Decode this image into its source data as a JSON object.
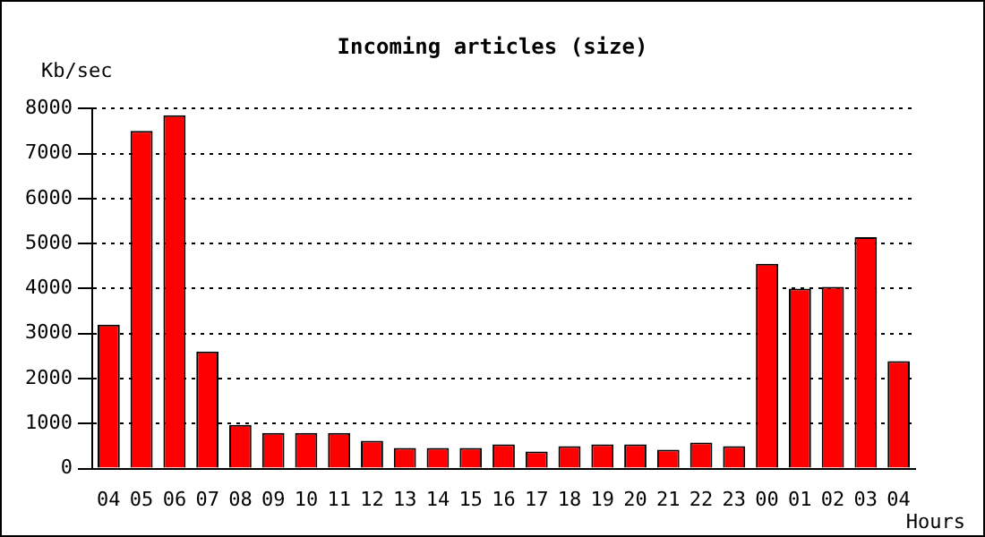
{
  "chart_data": {
    "type": "bar",
    "title": "Incoming articles (size)",
    "ylabel": "Kb/sec",
    "xlabel": "Hours",
    "categories": [
      "04",
      "05",
      "06",
      "07",
      "08",
      "09",
      "10",
      "11",
      "12",
      "13",
      "14",
      "15",
      "16",
      "17",
      "18",
      "19",
      "20",
      "21",
      "22",
      "23",
      "00",
      "01",
      "02",
      "03",
      "04"
    ],
    "values": [
      3200,
      7500,
      7850,
      2600,
      970,
      790,
      790,
      790,
      620,
      460,
      460,
      460,
      540,
      380,
      500,
      540,
      540,
      420,
      580,
      500,
      4550,
      4000,
      4040,
      5140,
      2390
    ],
    "color": "#ff0000",
    "ylim": [
      0,
      8000
    ],
    "yticks": [
      0,
      1000,
      2000,
      3000,
      4000,
      5000,
      6000,
      7000,
      8000
    ],
    "grid": "y",
    "legend": false
  }
}
